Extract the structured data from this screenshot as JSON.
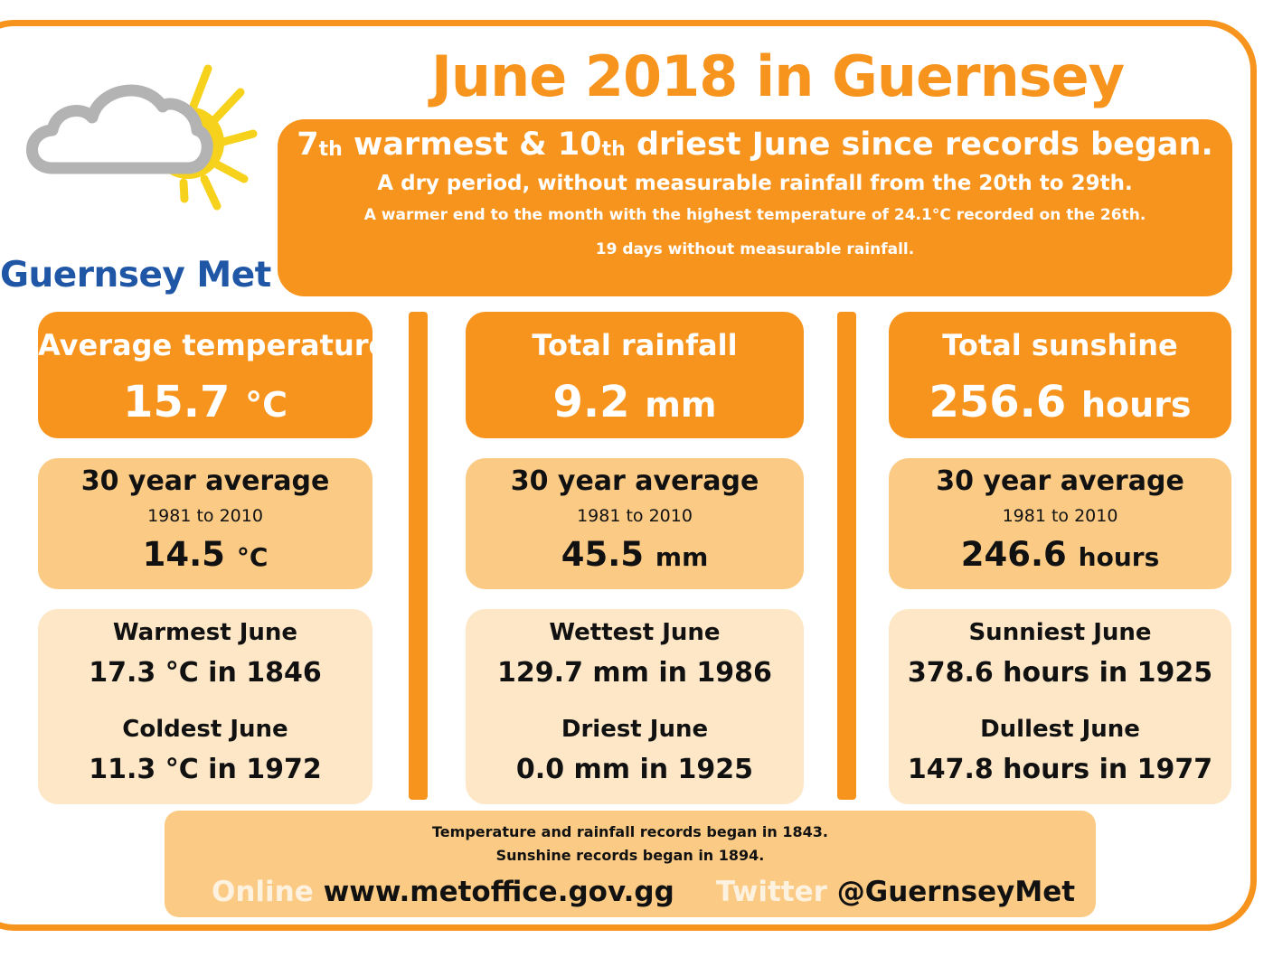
{
  "logo": {
    "text": "Guernsey Met"
  },
  "title": "June 2018 in Guernsey",
  "summary": {
    "rank1_num": "7",
    "rank1_suffix": "th",
    "rank1_rest": " warmest & ",
    "rank2_num": "10",
    "rank2_suffix": "th",
    "rank2_rest": " driest June since records began.",
    "line2": "A dry period, without measurable rainfall from the 20th to 29th.",
    "line3": "A warmer end to the month with the highest temperature of 24.1°C recorded on the 26th.",
    "line4": "19 days without measurable rainfall."
  },
  "columns": [
    {
      "label": "Average temperature",
      "value": "15.7",
      "unit": "°C",
      "avg_title": "30 year average",
      "avg_range": "1981 to 2010",
      "avg_value": "14.5",
      "avg_unit": "°C",
      "rec1_title": "Warmest June",
      "rec1_value": "17.3 °C in 1846",
      "rec2_title": "Coldest June",
      "rec2_value": "11.3 °C in 1972"
    },
    {
      "label": "Total rainfall",
      "value": "9.2",
      "unit": "mm",
      "avg_title": "30 year average",
      "avg_range": "1981 to 2010",
      "avg_value": "45.5",
      "avg_unit": "mm",
      "rec1_title": "Wettest June",
      "rec1_value": "129.7 mm in 1986",
      "rec2_title": "Driest June",
      "rec2_value": "0.0 mm in 1925"
    },
    {
      "label": "Total sunshine",
      "value": "256.6",
      "unit": "hours",
      "avg_title": "30 year average",
      "avg_range": "1981 to 2010",
      "avg_value": "246.6",
      "avg_unit": "hours",
      "rec1_title": "Sunniest June",
      "rec1_value": "378.6 hours in 1925",
      "rec2_title": "Dullest June",
      "rec2_value": "147.8 hours in 1977"
    }
  ],
  "footer": {
    "note1": "Temperature and rainfall records began in 1843.",
    "note2": "Sunshine records began in 1894.",
    "online_label": "Online",
    "online_value": "www.metoffice.gov.gg",
    "twitter_label": "Twitter",
    "twitter_value": "@GuernseyMet"
  },
  "colors": {
    "accent": "#f7941d",
    "mid": "#fbcb85",
    "light": "#fde7c7",
    "logo_text": "#1f56a6",
    "sun": "#f6d21c",
    "cloud": "#b3b3b3"
  },
  "icons": {
    "logo": "cloud-sun-icon"
  }
}
